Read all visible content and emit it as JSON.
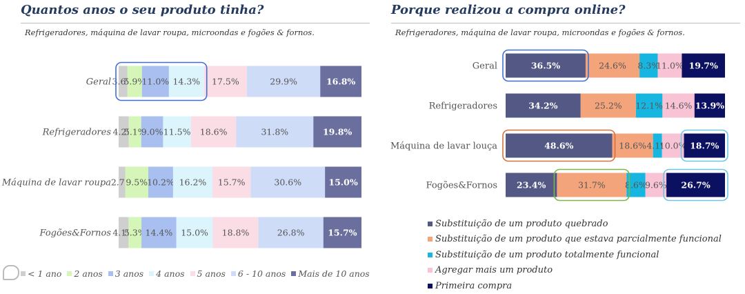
{
  "chart_data": [
    {
      "type": "bar",
      "orientation": "horizontal",
      "stacked": true,
      "title": "Quantos anos o seu produto tinha?",
      "subtitle": "Refrigeradores, máquina de lavar roupa, microondas e fogões & fornos.",
      "categories": [
        "Geral",
        "Refrigeradores",
        "Máquina de lavar roupa",
        "Fogões&Fornos"
      ],
      "series": [
        {
          "name": "< 1 ano",
          "color": "#cfcfcf",
          "values": [
            3.6,
            4.2,
            2.7,
            4.1
          ],
          "labels": [
            "3.6%",
            "4.2%",
            "2.7%",
            "4.1%"
          ]
        },
        {
          "name": "2 anos",
          "color": "#d6f5b8",
          "values": [
            5.9,
            5.1,
            9.5,
            5.3
          ],
          "labels": [
            "5.9%",
            "5.1%",
            "9.5%",
            "5.3%"
          ]
        },
        {
          "name": "3 anos",
          "color": "#a9bff0",
          "values": [
            11.0,
            9.0,
            10.2,
            14.4
          ],
          "labels": [
            "11.0%",
            "9.0%",
            "10.2%",
            "14.4%"
          ]
        },
        {
          "name": "4 anos",
          "color": "#dcf4fb",
          "values": [
            14.3,
            11.5,
            16.2,
            15.0
          ],
          "labels": [
            "14.3%",
            "11.5%",
            "16.2%",
            "15.0%"
          ]
        },
        {
          "name": "5 anos",
          "color": "#fbdde6",
          "values": [
            17.5,
            18.6,
            15.7,
            18.8
          ],
          "labels": [
            "17.5%",
            "18.6%",
            "15.7%",
            "18.8%"
          ]
        },
        {
          "name": "6 - 10 anos",
          "color": "#cfdcf7",
          "values": [
            29.9,
            31.8,
            30.6,
            26.8
          ],
          "labels": [
            "29.9%",
            "31.8%",
            "30.6%",
            "26.8%"
          ]
        },
        {
          "name": "Mais de 10 anos",
          "color": "#6b6f9e",
          "values": [
            16.8,
            19.8,
            15.0,
            15.7
          ],
          "labels": [
            "16.8%",
            "19.8%",
            "15.0%",
            "15.7%"
          ]
        }
      ],
      "legend_position": "bottom",
      "grid": false,
      "highlight_color": "#3f6fd4"
    },
    {
      "type": "bar",
      "orientation": "horizontal",
      "stacked": true,
      "title": "Porque realizou a compra online?",
      "subtitle": "Refrigeradores, máquina de lavar roupa, microondas e fogões & fornos.",
      "categories": [
        "Geral",
        "Refrigeradores",
        "Máquina de lavar louça",
        "Fogões&Fornos"
      ],
      "series": [
        {
          "name": "Substituição de um produto quebrado",
          "color": "#535984",
          "values": [
            36.5,
            34.2,
            48.6,
            23.4
          ],
          "labels": [
            "36.5%",
            "34.2%",
            "48.6%",
            "23.4%"
          ]
        },
        {
          "name": "Substituição de um produto que estava parcialmente funcional",
          "color": "#f4a47b",
          "values": [
            24.6,
            25.2,
            18.6,
            31.7
          ],
          "labels": [
            "24.6%",
            "25.2%",
            "18.6%",
            "31.7%"
          ]
        },
        {
          "name": "Substituição de um produto totalmente funcional",
          "color": "#17b6e0",
          "values": [
            8.3,
            12.1,
            4.1,
            8.6
          ],
          "labels": [
            "8.3%",
            "12.1%",
            "4.1%",
            "8.6%"
          ]
        },
        {
          "name": "Agregar mais um produto",
          "color": "#f9c3d6",
          "values": [
            11.0,
            14.6,
            10.0,
            9.6
          ],
          "labels": [
            "11.0%",
            "14.6%",
            "10.0%",
            "9.6%"
          ]
        },
        {
          "name": "Primeira compra",
          "color": "#0c1060",
          "values": [
            19.7,
            13.9,
            18.7,
            26.7
          ],
          "labels": [
            "19.7%",
            "13.9%",
            "18.7%",
            "26.7%"
          ]
        }
      ],
      "legend_position": "bottom-left",
      "grid": false
    }
  ]
}
